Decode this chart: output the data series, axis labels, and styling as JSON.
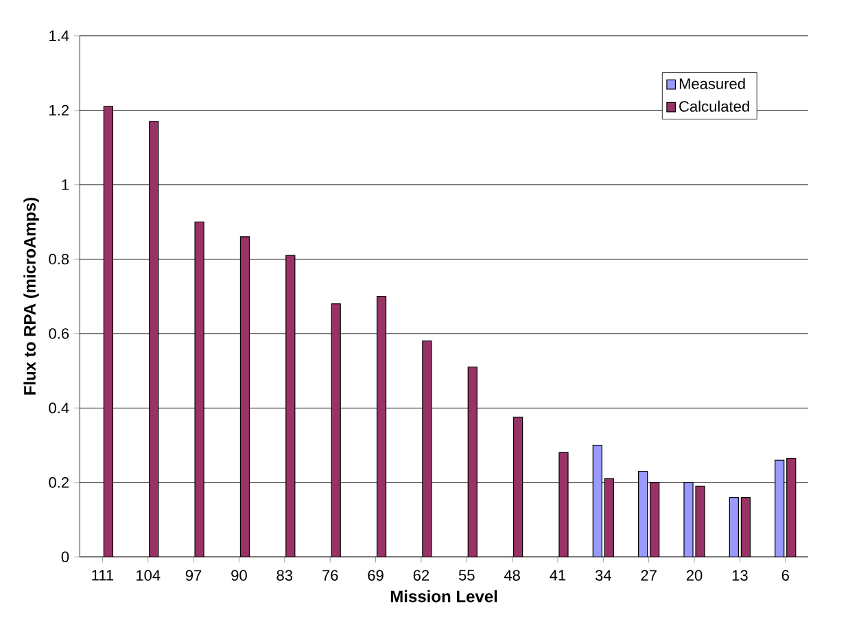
{
  "chart_data": {
    "type": "bar",
    "xlabel": "Mission Level",
    "ylabel": "Flux to RPA (microAmps)",
    "categories": [
      "111",
      "104",
      "97",
      "90",
      "83",
      "76",
      "69",
      "62",
      "55",
      "48",
      "41",
      "34",
      "27",
      "20",
      "13",
      "6"
    ],
    "series": [
      {
        "name": "Measured",
        "color": "#9999ff",
        "values": [
          null,
          null,
          null,
          null,
          null,
          null,
          null,
          null,
          null,
          null,
          null,
          0.3,
          0.23,
          0.2,
          0.16,
          0.26
        ]
      },
      {
        "name": "Calculated",
        "color": "#993366",
        "values": [
          1.21,
          1.17,
          0.9,
          0.86,
          0.81,
          0.68,
          0.7,
          0.58,
          0.51,
          0.375,
          0.28,
          0.21,
          0.2,
          0.19,
          0.16,
          0.265
        ]
      }
    ],
    "ylim": [
      0,
      1.4
    ],
    "yticks": [
      0,
      0.2,
      0.4,
      0.6,
      0.8,
      1,
      1.2,
      1.4
    ],
    "grid": "y",
    "legend": "top right"
  }
}
